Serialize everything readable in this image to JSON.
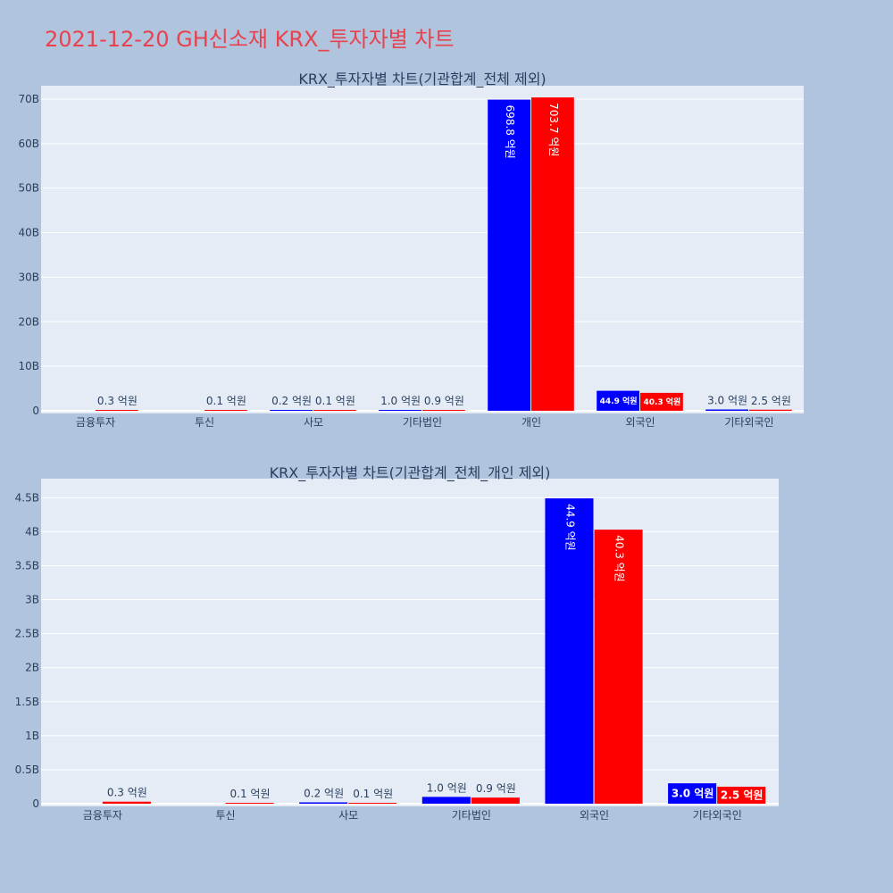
{
  "page": {
    "title": "2021-12-20 GH신소재 KRX_투자자별 차트"
  },
  "colors": {
    "buy": "#0000ff",
    "sell": "#ff0000",
    "plot_bg": "#e5ecf6",
    "page_bg": "#b0c4de",
    "title": "#e8424f"
  },
  "chart_data": [
    {
      "type": "bar",
      "title": "KRX_투자자별 차트(기관합계_전체 제외)",
      "categories": [
        "금융투자",
        "투신",
        "사모",
        "기타법인",
        "개인",
        "외국인",
        "기타외국인"
      ],
      "series": [
        {
          "values": [
            0.0,
            0.0,
            0.02,
            0.1,
            69.88,
            4.49,
            0.3
          ],
          "labels": [
            "",
            "",
            "0.2 억원",
            "1.0 억원",
            "698.8 억원",
            "44.9 억원",
            "3.0 억원"
          ]
        },
        {
          "values": [
            0.03,
            0.01,
            0.01,
            0.09,
            70.37,
            4.03,
            0.25
          ],
          "labels": [
            "0.3 억원",
            "0.1 억원",
            "0.1 억원",
            "0.9 억원",
            "703.7 억원",
            "40.3 억원",
            "2.5 억원"
          ]
        }
      ],
      "ylim": [
        0,
        73
      ],
      "yticks": [
        0,
        10,
        20,
        30,
        40,
        50,
        60,
        70
      ],
      "ytick_labels": [
        "0",
        "10B",
        "20B",
        "30B",
        "40B",
        "50B",
        "60B",
        "70B"
      ],
      "grid": true
    },
    {
      "type": "bar",
      "title": "KRX_투자자별 차트(기관합계_전체_개인 제외)",
      "categories": [
        "금융투자",
        "투신",
        "사모",
        "기타법인",
        "외국인",
        "기타외국인"
      ],
      "series": [
        {
          "values": [
            0.0,
            0.0,
            0.02,
            0.1,
            4.49,
            0.3
          ],
          "labels": [
            "",
            "",
            "0.2 억원",
            "1.0 억원",
            "44.9 억원",
            "3.0 억원"
          ]
        },
        {
          "values": [
            0.03,
            0.01,
            0.01,
            0.09,
            4.03,
            0.25
          ],
          "labels": [
            "0.3 억원",
            "0.1 억원",
            "0.1 억원",
            "0.9 억원",
            "40.3 억원",
            "2.5 억원"
          ]
        }
      ],
      "ylim": [
        0,
        4.78
      ],
      "yticks": [
        0,
        0.5,
        1,
        1.5,
        2,
        2.5,
        3,
        3.5,
        4,
        4.5
      ],
      "ytick_labels": [
        "0",
        "0.5B",
        "1B",
        "1.5B",
        "2B",
        "2.5B",
        "3B",
        "3.5B",
        "4B",
        "4.5B"
      ],
      "grid": true
    }
  ]
}
